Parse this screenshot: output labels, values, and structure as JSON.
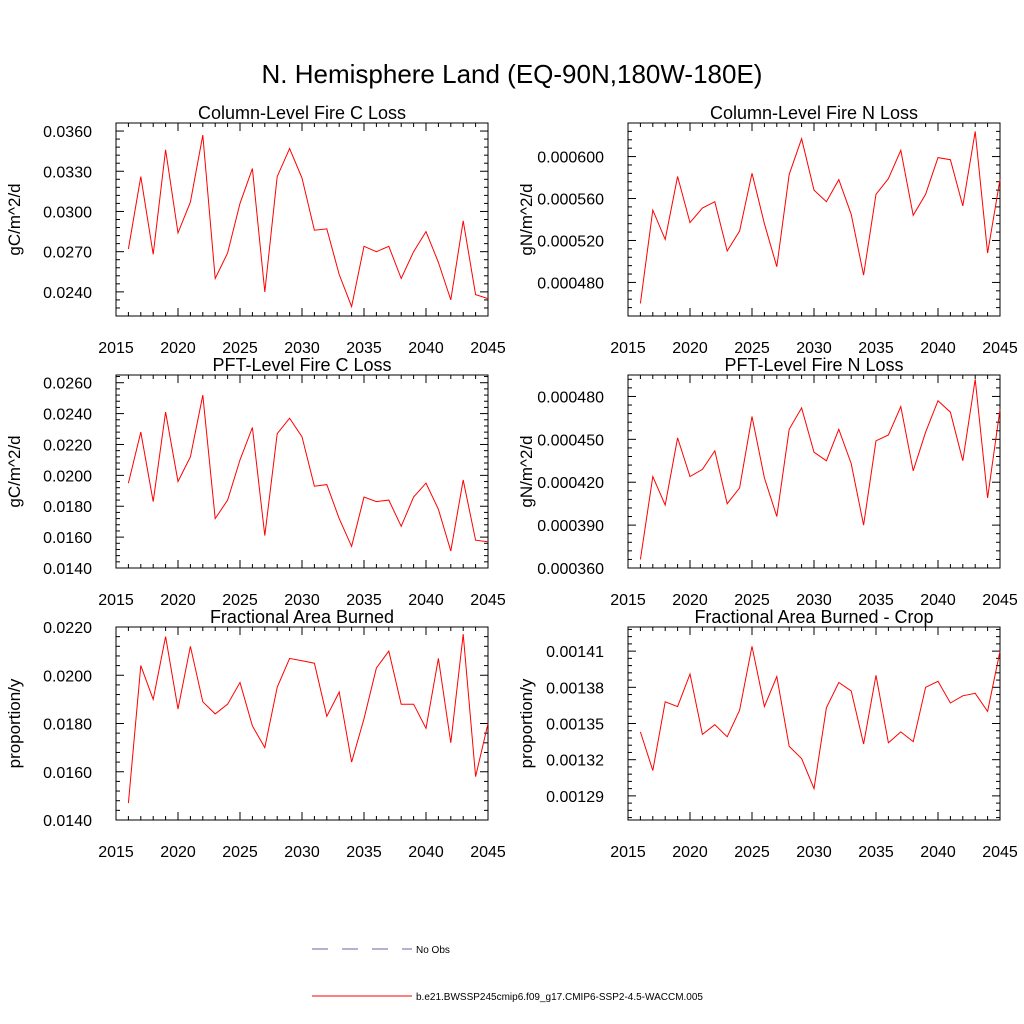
{
  "title": "N. Hemisphere Land (EQ-90N,180W-180E)",
  "colors": {
    "series": "#ff0000",
    "obs": "#6666aa",
    "axis": "#000000"
  },
  "legend": {
    "obs_label": "No Obs",
    "series_label": "b.e21.BWSSP245cmip6.f09_g17.CMIP6-SSP2-4.5-WACCM.005"
  },
  "chart_data": [
    {
      "type": "line",
      "title": "Column-Level Fire C Loss",
      "ylabel": "gC/m^2/d",
      "xlim": [
        2015,
        2045
      ],
      "ylim": [
        0.0222,
        0.0366
      ],
      "xticks": [
        2015,
        2020,
        2025,
        2030,
        2035,
        2040,
        2045
      ],
      "yticks": [
        0.024,
        0.027,
        0.03,
        0.033,
        0.036
      ],
      "ytick_labels": [
        "0.0240",
        "0.0270",
        "0.0300",
        "0.0330",
        "0.0360"
      ],
      "x": [
        2016,
        2017,
        2018,
        2019,
        2020,
        2021,
        2022,
        2023,
        2024,
        2025,
        2026,
        2027,
        2028,
        2029,
        2030,
        2031,
        2032,
        2033,
        2034,
        2035,
        2036,
        2037,
        2038,
        2039,
        2040,
        2041,
        2042,
        2043,
        2044,
        2045
      ],
      "series": [
        {
          "values": [
            0.0272,
            0.0326,
            0.0268,
            0.0346,
            0.0284,
            0.0307,
            0.0357,
            0.025,
            0.0269,
            0.0306,
            0.0332,
            0.024,
            0.0326,
            0.0347,
            0.0325,
            0.0286,
            0.0287,
            0.0253,
            0.0229,
            0.0274,
            0.027,
            0.0274,
            0.025,
            0.027,
            0.0285,
            0.0262,
            0.0234,
            0.0293,
            0.0238,
            0.0235
          ]
        }
      ]
    },
    {
      "type": "line",
      "title": "Column-Level Fire N Loss",
      "ylabel": "gN/m^2/d",
      "xlim": [
        2015,
        2045
      ],
      "ylim": [
        0.000448,
        0.000632
      ],
      "xticks": [
        2015,
        2020,
        2025,
        2030,
        2035,
        2040,
        2045
      ],
      "yticks": [
        0.00048,
        0.00052,
        0.00056,
        0.0006
      ],
      "ytick_labels": [
        "0.000480",
        "0.000520",
        "0.000560",
        "0.000600"
      ],
      "x": [
        2016,
        2017,
        2018,
        2019,
        2020,
        2021,
        2022,
        2023,
        2024,
        2025,
        2026,
        2027,
        2028,
        2029,
        2030,
        2031,
        2032,
        2033,
        2034,
        2035,
        2036,
        2037,
        2038,
        2039,
        2040,
        2041,
        2042,
        2043,
        2044,
        2045
      ],
      "series": [
        {
          "values": [
            0.00046,
            0.000549,
            0.000521,
            0.000581,
            0.000537,
            0.000551,
            0.000557,
            0.00051,
            0.000529,
            0.000584,
            0.000536,
            0.000495,
            0.000583,
            0.000617,
            0.000568,
            0.000557,
            0.000578,
            0.000545,
            0.000487,
            0.000564,
            0.000579,
            0.000606,
            0.000544,
            0.000564,
            0.000599,
            0.000597,
            0.000553,
            0.000624,
            0.000508,
            0.000578
          ]
        }
      ]
    },
    {
      "type": "line",
      "title": "PFT-Level Fire C Loss",
      "ylabel": "gC/m^2/d",
      "xlim": [
        2015,
        2045
      ],
      "ylim": [
        0.014,
        0.0265
      ],
      "xticks": [
        2015,
        2020,
        2025,
        2030,
        2035,
        2040,
        2045
      ],
      "yticks": [
        0.014,
        0.016,
        0.018,
        0.02,
        0.022,
        0.024,
        0.026
      ],
      "ytick_labels": [
        "0.0140",
        "0.0160",
        "0.0180",
        "0.0200",
        "0.0220",
        "0.0240",
        "0.0260"
      ],
      "x": [
        2016,
        2017,
        2018,
        2019,
        2020,
        2021,
        2022,
        2023,
        2024,
        2025,
        2026,
        2027,
        2028,
        2029,
        2030,
        2031,
        2032,
        2033,
        2034,
        2035,
        2036,
        2037,
        2038,
        2039,
        2040,
        2041,
        2042,
        2043,
        2044,
        2045
      ],
      "series": [
        {
          "values": [
            0.0195,
            0.0228,
            0.0183,
            0.0241,
            0.0196,
            0.0212,
            0.0252,
            0.0172,
            0.0184,
            0.021,
            0.0231,
            0.0161,
            0.0227,
            0.0237,
            0.0225,
            0.0193,
            0.0194,
            0.0172,
            0.0154,
            0.0186,
            0.0183,
            0.0184,
            0.0167,
            0.0186,
            0.0195,
            0.0178,
            0.0151,
            0.0197,
            0.0158,
            0.0157
          ]
        }
      ]
    },
    {
      "type": "line",
      "title": "PFT-Level Fire N Loss",
      "ylabel": "gN/m^2/d",
      "xlim": [
        2015,
        2045
      ],
      "ylim": [
        0.00036,
        0.000495
      ],
      "xticks": [
        2015,
        2020,
        2025,
        2030,
        2035,
        2040,
        2045
      ],
      "yticks": [
        0.00036,
        0.00039,
        0.00042,
        0.00045,
        0.00048
      ],
      "ytick_labels": [
        "0.000360",
        "0.000390",
        "0.000420",
        "0.000450",
        "0.000480"
      ],
      "x": [
        2016,
        2017,
        2018,
        2019,
        2020,
        2021,
        2022,
        2023,
        2024,
        2025,
        2026,
        2027,
        2028,
        2029,
        2030,
        2031,
        2032,
        2033,
        2034,
        2035,
        2036,
        2037,
        2038,
        2039,
        2040,
        2041,
        2042,
        2043,
        2044,
        2045
      ],
      "series": [
        {
          "values": [
            0.000366,
            0.000424,
            0.000404,
            0.000451,
            0.000424,
            0.000429,
            0.000442,
            0.000405,
            0.000416,
            0.000466,
            0.000423,
            0.000396,
            0.000457,
            0.000472,
            0.000441,
            0.000435,
            0.000457,
            0.000433,
            0.00039,
            0.000449,
            0.000453,
            0.000473,
            0.000428,
            0.000455,
            0.000477,
            0.000469,
            0.000435,
            0.000492,
            0.000409,
            0.000471
          ]
        }
      ]
    },
    {
      "type": "line",
      "title": "Fractional Area Burned",
      "ylabel": "proportion/y",
      "xlim": [
        2015,
        2045
      ],
      "ylim": [
        0.014,
        0.022
      ],
      "xticks": [
        2015,
        2020,
        2025,
        2030,
        2035,
        2040,
        2045
      ],
      "yticks": [
        0.014,
        0.016,
        0.018,
        0.02,
        0.022
      ],
      "ytick_labels": [
        "0.0140",
        "0.0160",
        "0.0180",
        "0.0200",
        "0.0220"
      ],
      "x": [
        2016,
        2017,
        2018,
        2019,
        2020,
        2021,
        2022,
        2023,
        2024,
        2025,
        2026,
        2027,
        2028,
        2029,
        2030,
        2031,
        2032,
        2033,
        2034,
        2035,
        2036,
        2037,
        2038,
        2039,
        2040,
        2041,
        2042,
        2043,
        2044,
        2045
      ],
      "series": [
        {
          "values": [
            0.0147,
            0.0204,
            0.019,
            0.0216,
            0.0186,
            0.0212,
            0.0189,
            0.0184,
            0.0188,
            0.0197,
            0.0179,
            0.017,
            0.0195,
            0.0207,
            0.0206,
            0.0205,
            0.0183,
            0.0193,
            0.0164,
            0.0182,
            0.0203,
            0.021,
            0.0188,
            0.0188,
            0.0178,
            0.0207,
            0.0172,
            0.0217,
            0.0158,
            0.018
          ]
        }
      ]
    },
    {
      "type": "line",
      "title": "Fractional Area Burned - Crop",
      "ylabel": "proportion/y",
      "xlim": [
        2015,
        2045
      ],
      "ylim": [
        0.00127,
        0.00143
      ],
      "xticks": [
        2015,
        2020,
        2025,
        2030,
        2035,
        2040,
        2045
      ],
      "yticks": [
        0.00129,
        0.00132,
        0.00135,
        0.00138,
        0.00141
      ],
      "ytick_labels": [
        "0.00129",
        "0.00132",
        "0.00135",
        "0.00138",
        "0.00141"
      ],
      "x": [
        2016,
        2017,
        2018,
        2019,
        2020,
        2021,
        2022,
        2023,
        2024,
        2025,
        2026,
        2027,
        2028,
        2029,
        2030,
        2031,
        2032,
        2033,
        2034,
        2035,
        2036,
        2037,
        2038,
        2039,
        2040,
        2041,
        2042,
        2043,
        2044,
        2045
      ],
      "series": [
        {
          "values": [
            0.001343,
            0.001311,
            0.001368,
            0.001364,
            0.001391,
            0.001341,
            0.001349,
            0.001339,
            0.001361,
            0.001414,
            0.001364,
            0.001389,
            0.001331,
            0.001321,
            0.001296,
            0.001363,
            0.001384,
            0.001377,
            0.001333,
            0.00139,
            0.001334,
            0.001343,
            0.001335,
            0.00138,
            0.001385,
            0.001367,
            0.001373,
            0.001375,
            0.00136,
            0.00141
          ]
        }
      ]
    }
  ]
}
